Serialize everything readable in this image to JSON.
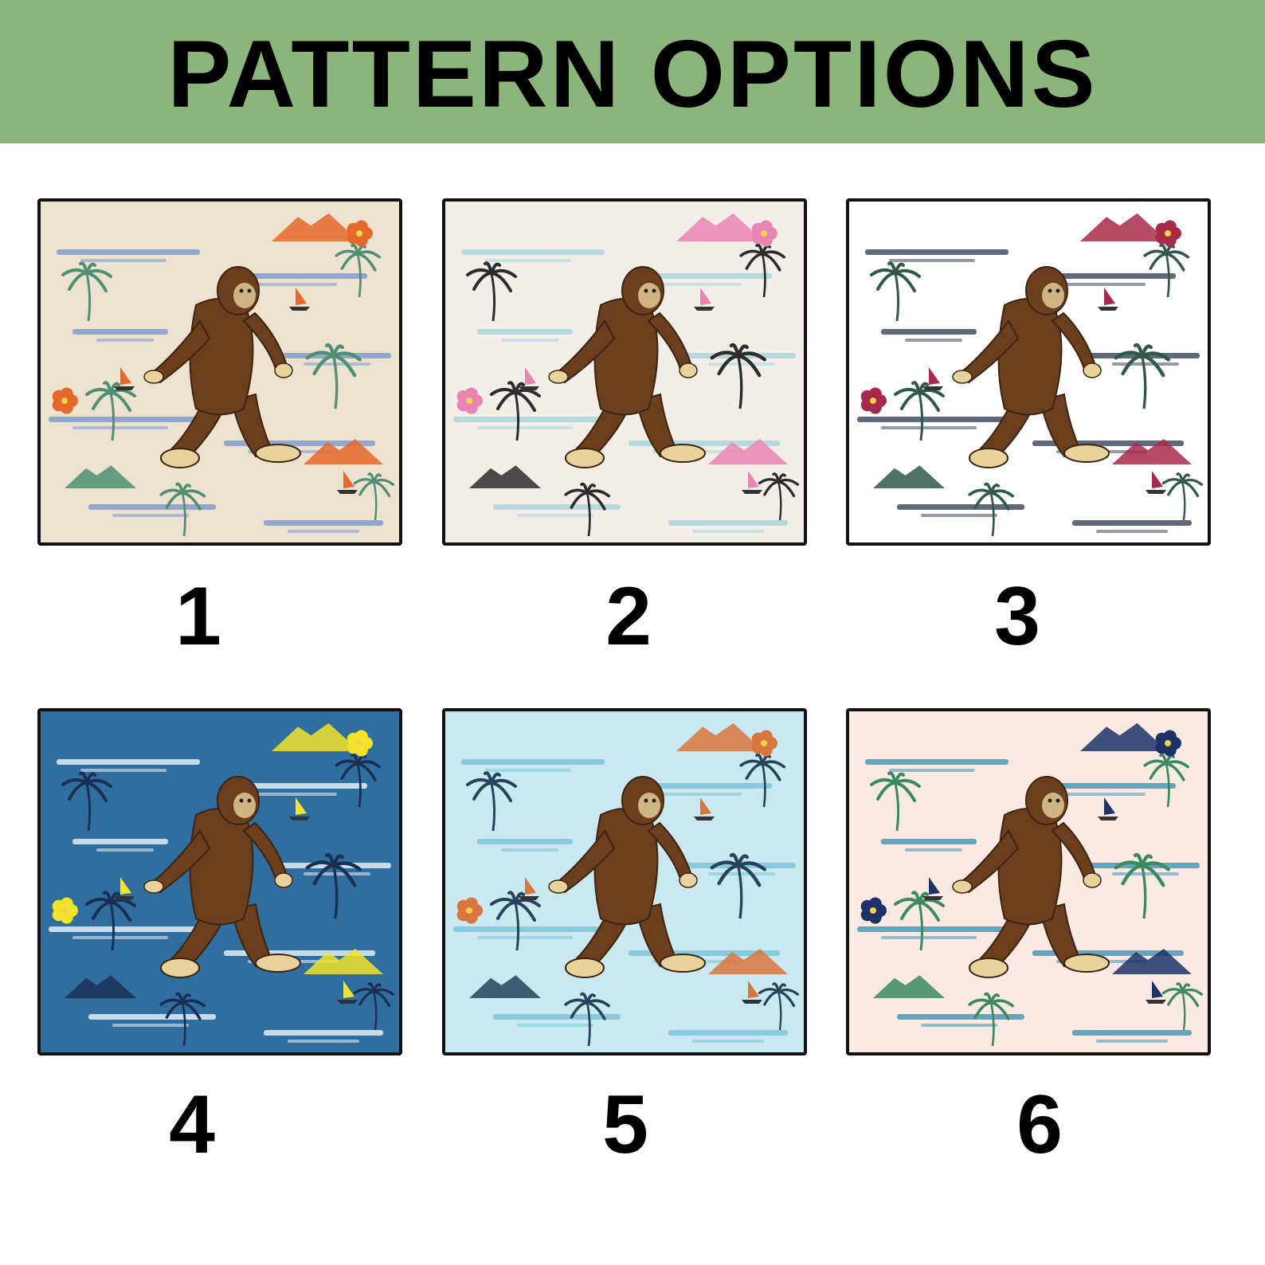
{
  "header": {
    "title": "PATTERN OPTIONS",
    "background": "#8cb57b"
  },
  "patterns": [
    {
      "number": "1",
      "background": "#ede1cf",
      "water": "#6d93d4",
      "palm": "#4f8f73",
      "accent": "#e46a2b",
      "figure": "bigfoot-icon"
    },
    {
      "number": "2",
      "background": "#f3eee8",
      "water": "#9fd3df",
      "palm": "#2c2c2c",
      "accent": "#e985b2",
      "figure": "bigfoot-icon"
    },
    {
      "number": "3",
      "background": "#ffffff",
      "water": "#2a3550",
      "palm": "#2f5a46",
      "accent": "#a82a4a",
      "figure": "bigfoot-icon"
    },
    {
      "number": "4",
      "background": "#2f6e9e",
      "water": "#ffffff",
      "palm": "#1b2f55",
      "accent": "#f1e32a",
      "figure": "bigfoot-icon"
    },
    {
      "number": "5",
      "background": "#c9e8f0",
      "water": "#6fc3d6",
      "palm": "#28435c",
      "accent": "#d9763d",
      "figure": "bigfoot-icon"
    },
    {
      "number": "6",
      "background": "#fbe9e4",
      "water": "#2e8fb3",
      "palm": "#3a8a63",
      "accent": "#1e3268",
      "figure": "bigfoot-icon"
    }
  ]
}
